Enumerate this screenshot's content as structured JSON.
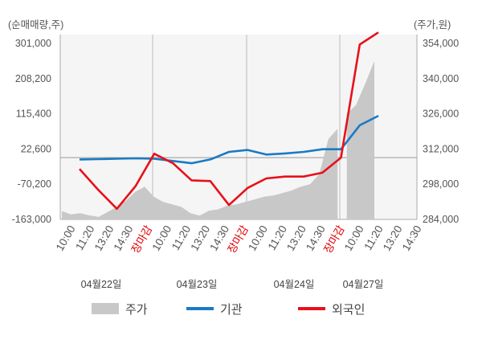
{
  "chart_data": {
    "type": "line",
    "left_axis_title": "(순매매량,주)",
    "right_axis_title": "(주가,원)",
    "left_ticks": [
      "301,000",
      "208,200",
      "115,400",
      "22,600",
      "-70,200",
      "-163,000"
    ],
    "right_ticks": [
      "354,000",
      "340,000",
      "326,000",
      "312,000",
      "298,000",
      "284,000"
    ],
    "left_ylim": [
      -163000,
      301000
    ],
    "right_ylim": [
      284000,
      354000
    ],
    "x_tick_labels": [
      "10:00",
      "11:20",
      "13:20",
      "14:30",
      "장마감",
      "10:00",
      "11:20",
      "13:20",
      "14:30",
      "장마감",
      "10:00",
      "11:20",
      "13:20",
      "14:30",
      "장마감",
      "10:00",
      "11:20",
      "13:20",
      "14:30"
    ],
    "dates": [
      "04월22일",
      "04월23일",
      "04월24일",
      "04월27일"
    ],
    "close_label": "장마감",
    "series": [
      {
        "name": "기관",
        "color": "#1a7ac4",
        "x": [
          0,
          1,
          2,
          3,
          4,
          5,
          6,
          7,
          8,
          9,
          10,
          11,
          12,
          13,
          14,
          15,
          16
        ],
        "values": [
          -5000,
          -4000,
          -3000,
          -2000,
          -3000,
          -9000,
          -15000,
          -5000,
          15000,
          20000,
          8000,
          11000,
          15000,
          22000,
          22000,
          85000,
          110000
        ]
      },
      {
        "name": "외국인",
        "color": "#e8101a",
        "x": [
          0,
          1,
          2,
          3,
          4,
          5,
          6,
          7,
          8,
          9,
          10,
          11,
          12,
          13,
          14,
          15,
          16
        ],
        "values": [
          -30000,
          -85000,
          -135000,
          -75000,
          10000,
          -15000,
          -60000,
          -62000,
          -125000,
          -80000,
          -55000,
          -50000,
          -50000,
          -40000,
          0,
          298000,
          330000
        ]
      },
      {
        "name": "주가",
        "color": "#c8c8c8",
        "type": "area",
        "x": [
          0,
          1,
          2,
          3,
          4,
          5,
          6,
          7,
          8,
          9,
          10,
          11,
          12,
          13,
          14,
          15,
          16,
          17,
          18,
          19,
          20,
          21,
          22,
          23,
          24,
          25,
          26,
          27,
          28,
          29,
          30,
          31,
          32,
          33,
          34
        ],
        "values": [
          287300,
          286000,
          286500,
          285600,
          285000,
          287000,
          289000,
          291500,
          295000,
          297000,
          293000,
          291000,
          290000,
          289000,
          286500,
          285500,
          287500,
          288000,
          289500,
          290000,
          291000,
          292000,
          293000,
          293500,
          294500,
          295500,
          297000,
          298000,
          302000,
          316000,
          320000,
          326000,
          329500,
          338000,
          347000
        ]
      }
    ],
    "gap_after_index": 30
  },
  "legend": [
    {
      "label": "주가",
      "color": "#c8c8c8",
      "kind": "area"
    },
    {
      "label": "기관",
      "color": "#1a7ac4",
      "kind": "line"
    },
    {
      "label": "외국인",
      "color": "#e8101a",
      "kind": "line"
    }
  ]
}
